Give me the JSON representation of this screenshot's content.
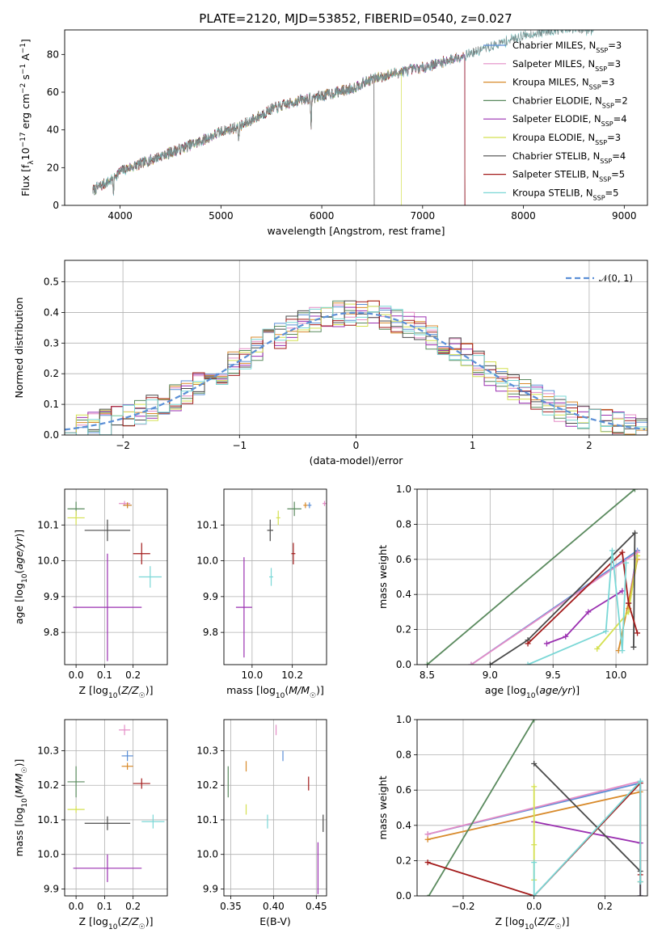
{
  "page": {
    "title": "PLATE=2120, MJD=53852, FIBERID=0540, z=0.027"
  },
  "models": [
    {
      "name": "Chabrier MILES",
      "nssp": "3",
      "color": "#5b8fd6"
    },
    {
      "name": "Salpeter MILES",
      "nssp": "3",
      "color": "#e48cc6"
    },
    {
      "name": "Kroupa MILES",
      "nssp": "3",
      "color": "#d88a2b"
    },
    {
      "name": "Chabrier ELODIE",
      "nssp": "2",
      "color": "#5a8a5e"
    },
    {
      "name": "Salpeter ELODIE",
      "nssp": "4",
      "color": "#9a2fb0"
    },
    {
      "name": "Kroupa ELODIE",
      "nssp": "3",
      "color": "#d4e050"
    },
    {
      "name": "Chabrier STELIB",
      "nssp": "4",
      "color": "#4a4a4a"
    },
    {
      "name": "Salpeter STELIB",
      "nssp": "5",
      "color": "#a31a1a"
    },
    {
      "name": "Kroupa STELIB",
      "nssp": "5",
      "color": "#7ad7d6"
    }
  ],
  "chart_data": [
    {
      "id": "spectrum",
      "type": "line",
      "xlabel": "wavelength [Angstrom, rest frame]",
      "ylabel": "Flux [f_λ10^-17 erg cm^-2 s^-1 A^-1]",
      "xlim": [
        3450,
        9230
      ],
      "ylim": [
        0,
        93
      ],
      "xticks": [
        4000,
        5000,
        6000,
        7000,
        8000,
        9000
      ],
      "yticks": [
        0,
        20,
        40,
        60,
        80
      ],
      "grid": false,
      "legend": "right",
      "trend": {
        "x": [
          3730,
          3900,
          4000,
          4300,
          4500,
          4800,
          5000,
          5200,
          5500,
          5800,
          6000,
          6300,
          6500,
          6800,
          7000,
          7200,
          7500,
          8000,
          8300,
          8700
        ],
        "y": [
          8,
          13,
          18,
          24,
          28,
          34,
          39,
          42,
          51,
          56,
          58,
          62,
          67,
          71,
          73,
          76,
          81,
          90,
          93,
          93
        ]
      },
      "model_cutoffs": [
        7420,
        7420,
        7420,
        7420,
        7420,
        6790,
        6520,
        7420,
        8700
      ],
      "features": [
        {
          "x": 5893,
          "depth": 16
        },
        {
          "x": 5175,
          "depth": 6
        },
        {
          "x": 3933,
          "depth": 8
        }
      ]
    },
    {
      "id": "residual_hist",
      "type": "histogram",
      "xlabel": "(data-model)/error",
      "ylabel": "Normed distribution",
      "xlim": [
        -2.5,
        2.5
      ],
      "ylim": [
        0,
        0.57
      ],
      "xticks": [
        -2,
        -1,
        0,
        1,
        2
      ],
      "yticks": [
        0.0,
        0.1,
        0.2,
        0.3,
        0.4,
        0.5
      ],
      "grid": true,
      "legend": "top-right",
      "reference_curve": "𝒩(0, 1)",
      "bin_width": 0.1
    },
    {
      "id": "age_vs_Z",
      "type": "scatter",
      "xlabel": "Z [log10(Z/Z☉)]",
      "ylabel": "age  [log10(age/yr)]",
      "xlim": [
        -0.04,
        0.32
      ],
      "ylim": [
        9.71,
        10.2
      ],
      "xticks": [
        0.0,
        0.1,
        0.2
      ],
      "yticks": [
        9.8,
        9.9,
        10.0,
        10.1
      ],
      "grid": true,
      "points": [
        {
          "x": 0.18,
          "y": 10.155,
          "xerr": 0.015,
          "yerr": 0.008
        },
        {
          "x": 0.17,
          "y": 10.16,
          "xerr": 0.02,
          "yerr": 0.007
        },
        {
          "x": 0.18,
          "y": 10.155,
          "xerr": 0.015,
          "yerr": 0.008
        },
        {
          "x": 0.0,
          "y": 10.145,
          "xerr": 0.03,
          "yerr": 0.02
        },
        {
          "x": 0.11,
          "y": 9.87,
          "xerr": 0.12,
          "yerr": 0.15
        },
        {
          "x": 0.0,
          "y": 10.12,
          "xerr": 0.03,
          "yerr": 0.02
        },
        {
          "x": 0.11,
          "y": 10.085,
          "xerr": 0.08,
          "yerr": 0.03
        },
        {
          "x": 0.23,
          "y": 10.02,
          "xerr": 0.03,
          "yerr": 0.03
        },
        {
          "x": 0.26,
          "y": 9.955,
          "xerr": 0.04,
          "yerr": 0.03
        }
      ]
    },
    {
      "id": "age_vs_mass",
      "type": "scatter",
      "xlabel": "mass [log10(M/M☉)]",
      "ylabel": "",
      "xlim": [
        9.86,
        10.37
      ],
      "ylim": [
        9.71,
        10.2
      ],
      "xticks": [
        10.0,
        10.2
      ],
      "yticks": [
        9.8,
        9.9,
        10.0,
        10.1
      ],
      "grid": true,
      "points": [
        {
          "x": 10.285,
          "y": 10.155,
          "xerr": 0.01,
          "yerr": 0.008
        },
        {
          "x": 10.36,
          "y": 10.16,
          "xerr": 0.01,
          "yerr": 0.007
        },
        {
          "x": 10.265,
          "y": 10.155,
          "xerr": 0.01,
          "yerr": 0.008
        },
        {
          "x": 10.21,
          "y": 10.145,
          "xerr": 0.035,
          "yerr": 0.02
        },
        {
          "x": 9.96,
          "y": 9.87,
          "xerr": 0.04,
          "yerr": 0.14
        },
        {
          "x": 10.13,
          "y": 10.12,
          "xerr": 0.01,
          "yerr": 0.02
        },
        {
          "x": 10.09,
          "y": 10.085,
          "xerr": 0.015,
          "yerr": 0.03
        },
        {
          "x": 10.205,
          "y": 10.02,
          "xerr": 0.01,
          "yerr": 0.03
        },
        {
          "x": 10.095,
          "y": 9.955,
          "xerr": 0.01,
          "yerr": 0.025
        }
      ]
    },
    {
      "id": "mass_weight_vs_age",
      "type": "line",
      "xlabel": "age  [log10(age/yr)]",
      "ylabel": "mass weight",
      "xlim": [
        8.42,
        10.25
      ],
      "ylim": [
        0,
        1
      ],
      "xticks": [
        8.5,
        9.0,
        9.5,
        10.0
      ],
      "yticks": [
        0.0,
        0.2,
        0.4,
        0.6,
        0.8,
        1.0
      ],
      "grid": true,
      "series": [
        {
          "x": [
            8.85,
            10.17,
            10.1
          ],
          "y": [
            0.0,
            0.65,
            0.35
          ]
        },
        {
          "x": [
            8.85,
            10.17,
            10.1
          ],
          "y": [
            0.0,
            0.64,
            0.35
          ]
        },
        {
          "x": [
            10.02,
            10.17,
            10.1
          ],
          "y": [
            0.08,
            0.6,
            0.32
          ]
        },
        {
          "x": [
            8.5,
            10.15
          ],
          "y": [
            0.0,
            1.0
          ]
        },
        {
          "x": [
            9.45,
            9.6,
            9.78,
            10.05
          ],
          "y": [
            0.12,
            0.16,
            0.3,
            0.42
          ]
        },
        {
          "x": [
            9.85,
            10.1,
            10.17
          ],
          "y": [
            0.09,
            0.3,
            0.62
          ]
        },
        {
          "x": [
            9.0,
            9.3,
            10.15,
            10.14
          ],
          "y": [
            0.0,
            0.14,
            0.75,
            0.1
          ]
        },
        {
          "x": [
            9.3,
            10.05,
            10.1,
            10.17
          ],
          "y": [
            0.12,
            0.64,
            0.35,
            0.18
          ]
        },
        {
          "x": [
            9.3,
            9.92,
            9.97,
            10.05,
            10.08
          ],
          "y": [
            0.0,
            0.19,
            0.65,
            0.08,
            0.58
          ]
        }
      ]
    },
    {
      "id": "mass_vs_Z",
      "type": "scatter",
      "xlabel": "Z [log10(Z/Z☉)]",
      "ylabel": "mass [log10(M/M☉)]",
      "xlim": [
        -0.04,
        0.32
      ],
      "ylim": [
        9.88,
        10.39
      ],
      "xticks": [
        0.0,
        0.1,
        0.2
      ],
      "yticks": [
        9.9,
        10.0,
        10.1,
        10.2,
        10.3
      ],
      "grid": true,
      "points": [
        {
          "x": 0.18,
          "y": 10.285,
          "xerr": 0.02,
          "yerr": 0.015
        },
        {
          "x": 0.17,
          "y": 10.36,
          "xerr": 0.02,
          "yerr": 0.015
        },
        {
          "x": 0.18,
          "y": 10.255,
          "xerr": 0.02,
          "yerr": 0.01
        },
        {
          "x": 0.0,
          "y": 10.21,
          "xerr": 0.03,
          "yerr": 0.045
        },
        {
          "x": 0.11,
          "y": 9.96,
          "xerr": 0.12,
          "yerr": 0.04
        },
        {
          "x": 0.0,
          "y": 10.13,
          "xerr": 0.03,
          "yerr": 0.01
        },
        {
          "x": 0.11,
          "y": 10.09,
          "xerr": 0.08,
          "yerr": 0.02
        },
        {
          "x": 0.23,
          "y": 10.205,
          "xerr": 0.03,
          "yerr": 0.015
        },
        {
          "x": 0.27,
          "y": 10.095,
          "xerr": 0.04,
          "yerr": 0.02
        }
      ]
    },
    {
      "id": "mass_vs_EBV",
      "type": "scatter",
      "xlabel": "E(B-V)",
      "ylabel": "",
      "xlim": [
        0.342,
        0.462
      ],
      "ylim": [
        9.88,
        10.39
      ],
      "xticks": [
        0.35,
        0.4,
        0.45
      ],
      "yticks": [
        9.9,
        10.0,
        10.1,
        10.2,
        10.3
      ],
      "grid": true,
      "points": [
        {
          "x": 0.411,
          "y": 10.285,
          "xerr": 0.0,
          "yerr": 0.015
        },
        {
          "x": 0.403,
          "y": 10.36,
          "xerr": 0.0,
          "yerr": 0.015
        },
        {
          "x": 0.368,
          "y": 10.255,
          "xerr": 0.0,
          "yerr": 0.015
        },
        {
          "x": 0.347,
          "y": 10.21,
          "xerr": 0.0,
          "yerr": 0.045
        },
        {
          "x": 0.452,
          "y": 9.96,
          "xerr": 0.0,
          "yerr": 0.075
        },
        {
          "x": 0.368,
          "y": 10.13,
          "xerr": 0.0,
          "yerr": 0.015
        },
        {
          "x": 0.458,
          "y": 10.09,
          "xerr": 0.0,
          "yerr": 0.025
        },
        {
          "x": 0.441,
          "y": 10.205,
          "xerr": 0.0,
          "yerr": 0.02
        },
        {
          "x": 0.393,
          "y": 10.095,
          "xerr": 0.0,
          "yerr": 0.02
        }
      ]
    },
    {
      "id": "mass_weight_vs_Z",
      "type": "line",
      "xlabel": "Z [log10(Z/Z☉)]",
      "ylabel": "mass weight",
      "xlim": [
        -0.33,
        0.32
      ],
      "ylim": [
        0,
        1
      ],
      "xticks": [
        -0.2,
        0.0,
        0.2
      ],
      "yticks": [
        0.0,
        0.2,
        0.4,
        0.6,
        0.8,
        1.0
      ],
      "grid": true,
      "series": [
        {
          "x": [
            -0.3,
            0.3,
            0.3
          ],
          "y": [
            0.35,
            0.64,
            0.0
          ]
        },
        {
          "x": [
            -0.3,
            0.3,
            0.3
          ],
          "y": [
            0.35,
            0.65,
            0.0
          ]
        },
        {
          "x": [
            -0.3,
            0.3,
            0.3
          ],
          "y": [
            0.32,
            0.59,
            0.08
          ]
        },
        {
          "x": [
            -0.3,
            0.0
          ],
          "y": [
            -0.01,
            1.0
          ]
        },
        {
          "x": [
            0.0,
            0.3
          ],
          "y": [
            0.42,
            0.3
          ]
        },
        {
          "x": [
            0.0,
            0.0,
            0.0
          ],
          "y": [
            0.62,
            0.29,
            0.09
          ]
        },
        {
          "x": [
            0.0,
            0.3,
            0.3
          ],
          "y": [
            0.75,
            0.14,
            0.0
          ]
        },
        {
          "x": [
            -0.3,
            0.0,
            0.3,
            0.3
          ],
          "y": [
            0.19,
            0.0,
            0.64,
            0.12
          ]
        },
        {
          "x": [
            0.0,
            0.0,
            0.3,
            0.3
          ],
          "y": [
            0.19,
            0.0,
            0.65,
            0.08
          ]
        }
      ]
    }
  ]
}
